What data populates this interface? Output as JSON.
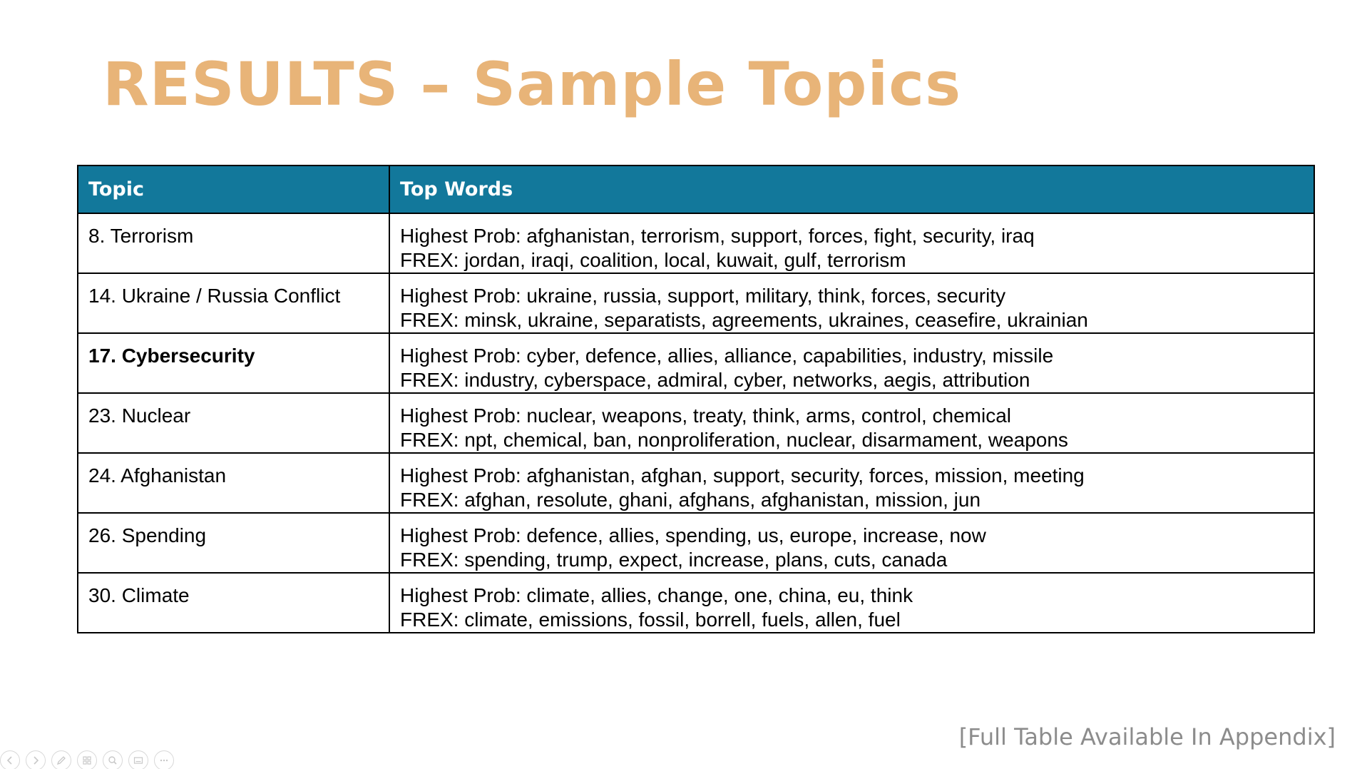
{
  "slide": {
    "title": "RESULTS – Sample Topics",
    "title_color": "#E8B478",
    "footnote": "[Full Table Available In Appendix]"
  },
  "table": {
    "header_bg": "#12789B",
    "headers": [
      "Topic",
      "Top Words"
    ],
    "rows": [
      {
        "topic": "8. Terrorism",
        "bold": false,
        "highest_prob": "Highest Prob: afghanistan, terrorism, support, forces, fight, security, iraq",
        "frex": "FREX: jordan, iraqi, coalition, local, kuwait, gulf, terrorism"
      },
      {
        "topic": "14. Ukraine / Russia Conflict",
        "bold": false,
        "highest_prob": "Highest Prob: ukraine, russia, support, military, think, forces, security",
        "frex": "FREX: minsk, ukraine, separatists, agreements, ukraines, ceasefire, ukrainian"
      },
      {
        "topic": "17. Cybersecurity",
        "bold": true,
        "highest_prob": "Highest Prob: cyber, defence, allies, alliance, capabilities, industry, missile",
        "frex": "FREX: industry, cyberspace, admiral, cyber, networks, aegis, attribution"
      },
      {
        "topic": "23. Nuclear",
        "bold": false,
        "highest_prob": "Highest Prob: nuclear, weapons, treaty, think, arms, control, chemical",
        "frex": "FREX: npt, chemical, ban, nonproliferation, nuclear, disarmament, weapons"
      },
      {
        "topic": "24. Afghanistan",
        "bold": false,
        "highest_prob": "Highest Prob: afghanistan, afghan, support, security, forces, mission, meeting",
        "frex": "FREX: afghan, resolute, ghani, afghans, afghanistan, mission, jun"
      },
      {
        "topic": "26. Spending",
        "bold": false,
        "highest_prob": "Highest Prob: defence, allies, spending, us, europe, increase, now",
        "frex": "FREX: spending, trump, expect, increase, plans, cuts, canada"
      },
      {
        "topic": "30. Climate",
        "bold": false,
        "highest_prob": "Highest Prob: climate, allies, change, one, china, eu, think",
        "frex": "FREX: climate, emissions, fossil, borrell, fuels, allen, fuel"
      }
    ]
  },
  "controls": [
    {
      "name": "previous-slide-icon"
    },
    {
      "name": "next-slide-icon"
    },
    {
      "name": "pen-icon"
    },
    {
      "name": "slides-grid-icon"
    },
    {
      "name": "zoom-icon"
    },
    {
      "name": "subtitles-icon"
    },
    {
      "name": "more-options-icon"
    }
  ]
}
